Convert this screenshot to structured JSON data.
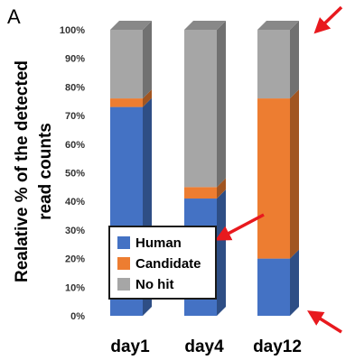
{
  "panel_label": "A",
  "chart_data": {
    "type": "bar",
    "stacked": true,
    "categories": [
      "day1",
      "day4",
      "day12"
    ],
    "ylabel_lines": [
      "Realative % of the detected",
      "read counts"
    ],
    "ylim": [
      0,
      100
    ],
    "yticks": [
      "0%",
      "10%",
      "20%",
      "30%",
      "40%",
      "50%",
      "60%",
      "70%",
      "80%",
      "90%",
      "100%"
    ],
    "series": [
      {
        "name": "Human",
        "color": "#4472c4",
        "values": [
          73,
          41,
          20
        ]
      },
      {
        "name": "Candidate",
        "color": "#ed7d31",
        "values": [
          3,
          4,
          56
        ]
      },
      {
        "name": "No hit",
        "color": "#a6a6a6",
        "values": [
          24,
          55,
          24
        ]
      }
    ],
    "legend_position": "lower-left"
  },
  "annotations": [
    {
      "type": "arrow",
      "color": "#e8191e"
    },
    {
      "type": "arrow",
      "color": "#e8191e"
    },
    {
      "type": "arrow",
      "color": "#e8191e"
    }
  ]
}
